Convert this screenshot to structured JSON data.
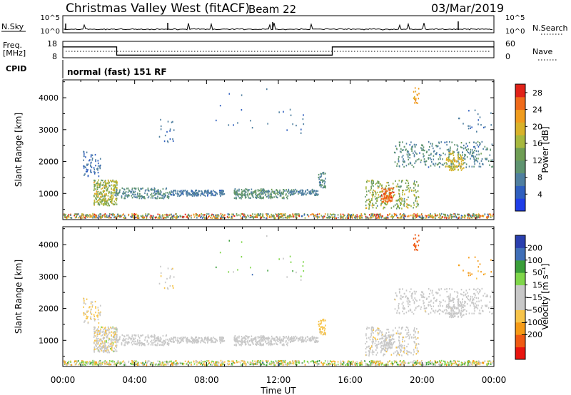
{
  "header": {
    "title": "Christmas Valley West (fitACF)",
    "beam": "Beam 22",
    "date": "03/Mar/2019"
  },
  "nsky": {
    "left_label": "N.Sky",
    "right_label": "N.Search",
    "tick_top": "10^5",
    "tick_bottom": "10^0"
  },
  "freq": {
    "left_label_1": "Freq.",
    "left_label_2": "[MHz]",
    "right_label": "Nave",
    "left_ticks": [
      "18",
      "8"
    ],
    "right_ticks": [
      "60",
      "0"
    ],
    "steps": [
      {
        "start": 0,
        "end": 3.0,
        "freq": 14.6
      },
      {
        "start": 3.0,
        "end": 15.0,
        "freq": 9.6
      },
      {
        "start": 15.0,
        "end": 24.0,
        "freq": 14.6
      }
    ]
  },
  "cpid": {
    "label": "CPID",
    "text": "normal (fast) 151 RF"
  },
  "chart_data": [
    {
      "type": "heatmap",
      "ylabel": "Slant Range [km]",
      "xlabel": "Time UT",
      "x_ticks": [
        "00:00",
        "04:00",
        "08:00",
        "12:00",
        "16:00",
        "20:00",
        "00:00"
      ],
      "y_ticks": [
        1000,
        2000,
        3000,
        4000
      ],
      "x_range_hours": [
        0,
        24
      ],
      "y_range_km": [
        180,
        4560
      ],
      "colorbar": {
        "label": "Power [dB]",
        "ticks": [
          "28",
          "24",
          "20",
          "16",
          "12",
          "8",
          "4"
        ],
        "range": [
          0,
          30
        ],
        "colors": [
          "#1f3ee8",
          "#2f5fbf",
          "#4f7fa0",
          "#5f9470",
          "#6f9e55",
          "#a7b83e",
          "#d8b22a",
          "#f09c1e",
          "#ef6a1a",
          "#e12218"
        ]
      }
    },
    {
      "type": "heatmap",
      "ylabel": "Slant Range [km]",
      "xlabel": "Time UT",
      "x_ticks": [
        "00:00",
        "04:00",
        "08:00",
        "12:00",
        "16:00",
        "20:00",
        "00:00"
      ],
      "y_ticks": [
        1000,
        2000,
        3000,
        4000
      ],
      "x_range_hours": [
        0,
        24
      ],
      "y_range_km": [
        180,
        4560
      ],
      "colorbar": {
        "label": "Velocity [m s⁻¹]",
        "ticks": [
          "200",
          "100",
          "50",
          "15",
          "−15",
          "−50",
          "−100",
          "−200"
        ],
        "range": [
          -250,
          250
        ],
        "colors": [
          "#e8150f",
          "#ef5a13",
          "#f59a16",
          "#f7c44a",
          "#c8c8c8",
          "#c8c8c8",
          "#7fd64a",
          "#3a9e3a",
          "#3f6fb8",
          "#2a3fae"
        ]
      }
    }
  ]
}
